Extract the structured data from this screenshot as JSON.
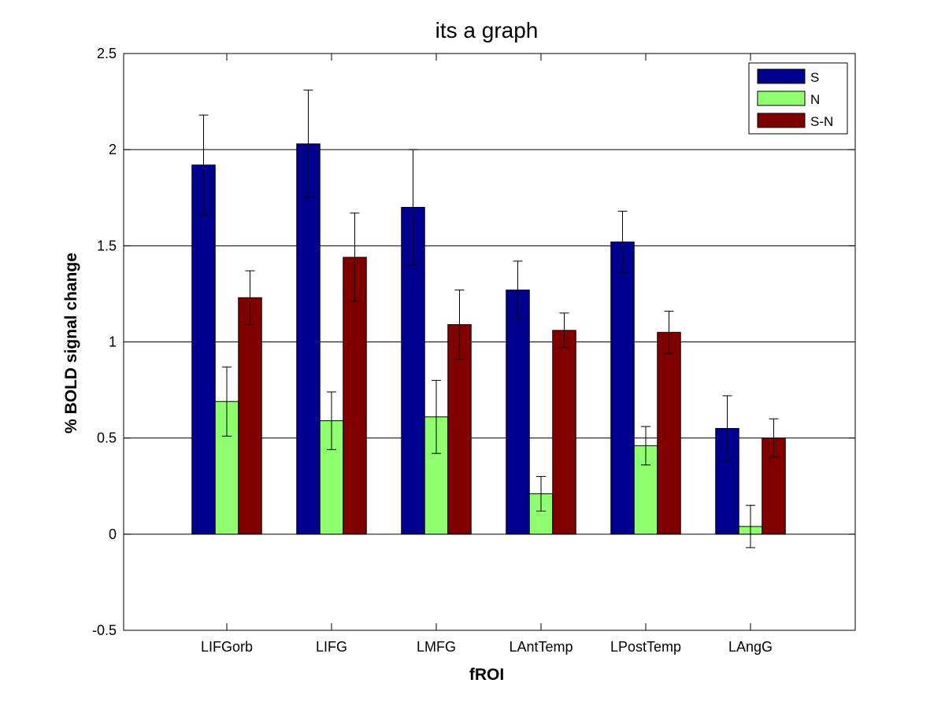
{
  "chart_data": {
    "type": "bar",
    "title": "its a graph",
    "xlabel": "fROI",
    "ylabel": "% BOLD signal change",
    "ylim": [
      -0.5,
      2.5
    ],
    "yticks": [
      "-0.5",
      "0",
      "0.5",
      "1",
      "1.5",
      "2",
      "2.5"
    ],
    "categories": [
      "LIFGorb",
      "LIFG",
      "LMFG",
      "LAntTemp",
      "LPostTemp",
      "LAngG"
    ],
    "grid": "horizontal major lines",
    "legend_position": "top-right",
    "series": [
      {
        "name": "S",
        "color": "#00008f",
        "values": [
          1.92,
          2.03,
          1.7,
          1.27,
          1.52,
          0.55
        ],
        "errors": [
          0.26,
          0.28,
          0.3,
          0.15,
          0.16,
          0.17
        ]
      },
      {
        "name": "N",
        "color": "#8fff70",
        "values": [
          0.69,
          0.59,
          0.61,
          0.21,
          0.46,
          0.04
        ],
        "errors": [
          0.18,
          0.15,
          0.19,
          0.09,
          0.1,
          0.11
        ]
      },
      {
        "name": "S-N",
        "color": "#800000",
        "values": [
          1.23,
          1.44,
          1.09,
          1.06,
          1.05,
          0.5
        ],
        "errors": [
          0.14,
          0.23,
          0.18,
          0.09,
          0.11,
          0.1
        ]
      }
    ]
  }
}
